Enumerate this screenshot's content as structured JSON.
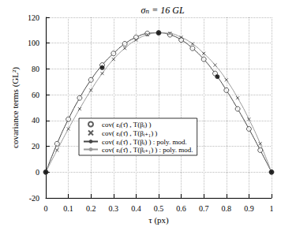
{
  "chart_data": {
    "type": "line",
    "title": "σₙ = 16 GL",
    "x_label": "τ (px)",
    "y_label": "covariance terms (GL²)",
    "xlim": [
      0,
      1
    ],
    "xticks": [
      0,
      0.1,
      0.2,
      0.3,
      0.4,
      0.5,
      0.6,
      0.7,
      0.8,
      0.9,
      1
    ],
    "ylim": [
      -20,
      120
    ],
    "yticks": [
      -20,
      0,
      20,
      40,
      60,
      80,
      100,
      120
    ],
    "grid": true,
    "legend": "bottom",
    "series": [
      {
        "name": "cov( εᵢ(τ̄) , T(βᵢ) )",
        "type": "scatter",
        "marker": "circle",
        "color": "#333333",
        "x": [
          0,
          0.05,
          0.1,
          0.15,
          0.2,
          0.25,
          0.3,
          0.35,
          0.4,
          0.45,
          0.5,
          0.55,
          0.6,
          0.65,
          0.7,
          0.75,
          0.8,
          0.85,
          0.9,
          0.95,
          1
        ],
        "values": [
          0,
          22.0,
          41.0,
          57.5,
          71.5,
          83.0,
          92.0,
          99.5,
          104.5,
          107.5,
          108,
          106.5,
          102.5,
          96.0,
          87.5,
          76.5,
          63.5,
          49.0,
          33.5,
          17.0,
          0
        ]
      },
      {
        "name": "cov( εᵢ(τ̄) , T(βᵢ₊₁) )",
        "type": "scatter",
        "marker": "cross",
        "color": "#333333",
        "x": [
          0,
          0.05,
          0.1,
          0.15,
          0.2,
          0.25,
          0.3,
          0.35,
          0.4,
          0.45,
          0.5,
          0.55,
          0.6,
          0.65,
          0.7,
          0.75,
          0.8,
          0.85,
          0.9,
          0.95,
          1
        ],
        "values": [
          0,
          17.0,
          33.5,
          49.0,
          63.5,
          76.5,
          87.5,
          96.0,
          102.5,
          106.5,
          108,
          107.5,
          104.5,
          99.5,
          92.0,
          83.0,
          71.5,
          57.5,
          41.0,
          22.0,
          0
        ]
      },
      {
        "name": "cov( εᵢ(τ̄) , T(βᵢ) ) : poly. mod.",
        "type": "line",
        "line_style": "solid",
        "color": "#444444",
        "x": [
          0,
          0.05,
          0.1,
          0.15,
          0.2,
          0.25,
          0.3,
          0.35,
          0.4,
          0.45,
          0.5,
          0.55,
          0.6,
          0.65,
          0.7,
          0.75,
          0.8,
          0.85,
          0.9,
          0.95,
          1
        ],
        "values": [
          0,
          22.0,
          41.0,
          57.5,
          71.5,
          83.0,
          92.0,
          99.5,
          104.5,
          107.5,
          108,
          106.5,
          102.5,
          96.0,
          87.5,
          76.5,
          63.5,
          49.0,
          33.5,
          17.0,
          0
        ]
      },
      {
        "name": "cov( εᵢ(τ̄) , T(βᵢ₊₁) ) : poly. mod.",
        "type": "line",
        "line_style": "solid",
        "color": "#999999",
        "x": [
          0,
          0.05,
          0.1,
          0.15,
          0.2,
          0.25,
          0.3,
          0.35,
          0.4,
          0.45,
          0.5,
          0.55,
          0.6,
          0.65,
          0.7,
          0.75,
          0.8,
          0.85,
          0.9,
          0.95,
          1
        ],
        "values": [
          0,
          17.0,
          33.5,
          49.0,
          63.5,
          76.5,
          87.5,
          96.0,
          102.5,
          106.5,
          108,
          107.5,
          104.5,
          99.5,
          92.0,
          83.0,
          71.5,
          57.5,
          41.0,
          22.0,
          0
        ]
      },
      {
        "type": "scatter",
        "marker": "filled circle",
        "color": "#000000",
        "x": [
          0,
          0.25,
          0.5,
          0.76,
          1
        ],
        "values": [
          0,
          81,
          108,
          74,
          0
        ]
      }
    ]
  }
}
